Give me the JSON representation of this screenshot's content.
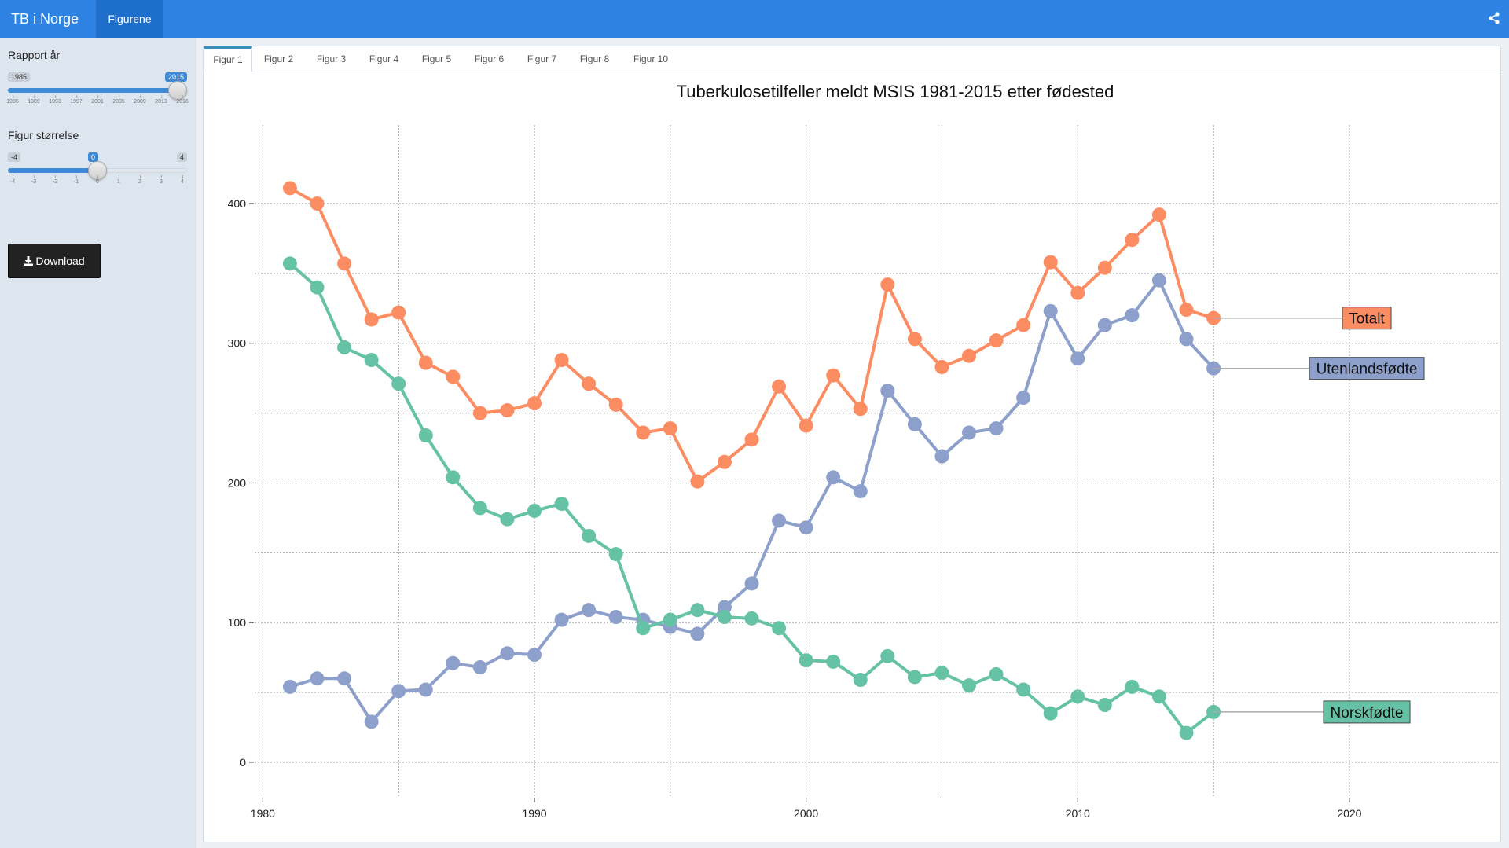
{
  "navbar": {
    "brand": "TB i Norge",
    "tab": "Figurene"
  },
  "sidebar": {
    "year_slider": {
      "label": "Rapport år",
      "min_label": "1985",
      "value_label": "2015",
      "value": 2015,
      "min": 1985,
      "max": 2016,
      "ticks": [
        "1985",
        "1989",
        "1993",
        "1997",
        "2001",
        "2005",
        "2009",
        "2013",
        "2016"
      ]
    },
    "size_slider": {
      "label": "Figur størrelse",
      "min_label": "-4",
      "max_label": "4",
      "value_label": "0",
      "value": 0,
      "min": -4,
      "max": 4,
      "ticks": [
        "-4",
        "-3",
        "-2",
        "-1",
        "0",
        "1",
        "2",
        "3",
        "4"
      ]
    },
    "download_label": "Download"
  },
  "tabs": [
    "Figur 1",
    "Figur 2",
    "Figur 3",
    "Figur 4",
    "Figur 5",
    "Figur 6",
    "Figur 7",
    "Figur 8",
    "Figur 10"
  ],
  "active_tab": "Figur 1",
  "colors": {
    "navbar": "#2e82e2",
    "accent": "#3f8ad5",
    "totalt": "#fc8d62",
    "utenlandsfodte": "#8da0cb",
    "norskfodte": "#66c2a5"
  },
  "icons": {
    "share": "share-icon",
    "download": "download-icon"
  },
  "chart_data": {
    "type": "line",
    "title": "Tuberkulosetilfeller meldt MSIS 1981-2015 etter fødested",
    "xlabel": "",
    "ylabel": "",
    "xlim": [
      1979.7,
      2025.5
    ],
    "ylim": [
      -22,
      445
    ],
    "xticks": [
      1980,
      1990,
      2000,
      2010,
      2020
    ],
    "yticks": [
      0,
      100,
      200,
      300,
      400
    ],
    "grid": true,
    "x": [
      1981,
      1982,
      1983,
      1984,
      1985,
      1986,
      1987,
      1988,
      1989,
      1990,
      1991,
      1992,
      1993,
      1994,
      1995,
      1996,
      1997,
      1998,
      1999,
      2000,
      2001,
      2002,
      2003,
      2004,
      2005,
      2006,
      2007,
      2008,
      2009,
      2010,
      2011,
      2012,
      2013,
      2014,
      2015
    ],
    "series": [
      {
        "name": "Totalt",
        "color": "#fc8d62",
        "values": [
          411,
          400,
          357,
          317,
          322,
          286,
          276,
          250,
          252,
          257,
          288,
          271,
          256,
          236,
          239,
          201,
          215,
          231,
          269,
          241,
          277,
          253,
          342,
          303,
          283,
          291,
          302,
          313,
          358,
          336,
          354,
          374,
          392,
          324,
          318
        ]
      },
      {
        "name": "Utenlandsfødte",
        "color": "#8da0cb",
        "values": [
          54,
          60,
          60,
          29,
          51,
          52,
          71,
          68,
          78,
          77,
          102,
          109,
          104,
          102,
          97,
          92,
          111,
          128,
          173,
          168,
          204,
          194,
          266,
          242,
          219,
          236,
          239,
          261,
          323,
          289,
          313,
          320,
          345,
          303,
          282
        ]
      },
      {
        "name": "Norskfødte",
        "color": "#66c2a5",
        "values": [
          357,
          340,
          297,
          288,
          271,
          234,
          204,
          182,
          174,
          180,
          185,
          162,
          149,
          96,
          102,
          109,
          104,
          103,
          96,
          73,
          72,
          59,
          76,
          61,
          64,
          55,
          63,
          52,
          35,
          47,
          41,
          54,
          47,
          21,
          36
        ]
      }
    ]
  }
}
